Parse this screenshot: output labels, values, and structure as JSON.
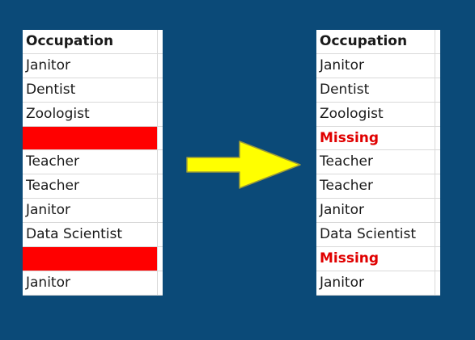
{
  "left_table": {
    "header": "Occupation",
    "rows": [
      {
        "text": "Janitor",
        "missing": false
      },
      {
        "text": "Dentist",
        "missing": false
      },
      {
        "text": "Zoologist",
        "missing": false
      },
      {
        "text": "",
        "missing": true
      },
      {
        "text": "Teacher",
        "missing": false
      },
      {
        "text": "Teacher",
        "missing": false
      },
      {
        "text": "Janitor",
        "missing": false
      },
      {
        "text": "Data Scientist",
        "missing": false
      },
      {
        "text": "",
        "missing": true
      },
      {
        "text": "Janitor",
        "missing": false
      }
    ]
  },
  "right_table": {
    "header": "Occupation",
    "rows": [
      {
        "text": "Janitor",
        "missing": false
      },
      {
        "text": "Dentist",
        "missing": false
      },
      {
        "text": "Zoologist",
        "missing": false
      },
      {
        "text": "Missing",
        "missing": true
      },
      {
        "text": "Teacher",
        "missing": false
      },
      {
        "text": "Teacher",
        "missing": false
      },
      {
        "text": "Janitor",
        "missing": false
      },
      {
        "text": "Data Scientist",
        "missing": false
      },
      {
        "text": "Missing",
        "missing": true
      },
      {
        "text": "Janitor",
        "missing": false
      }
    ]
  },
  "colors": {
    "background": "#0b4a78",
    "missing_fill": "#ff0000",
    "missing_text": "#e00000",
    "arrow": "#ffff00"
  },
  "icons": {
    "arrow": "right-arrow-icon"
  }
}
